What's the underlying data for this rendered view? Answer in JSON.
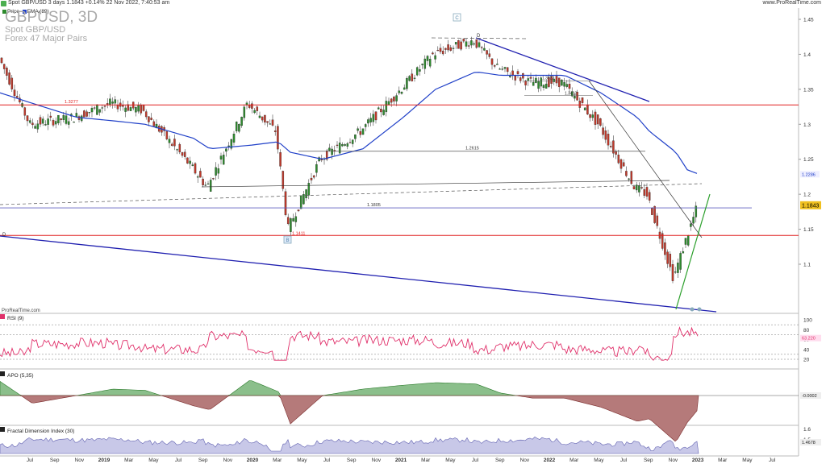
{
  "header": {
    "summary": "Spot GBP/USD 3 days 1.1843 +0.14% 22 Nov 2022, 7:40:53 am",
    "site": "www.ProRealTime.com",
    "legend_price": "Price",
    "legend_ema": "EMA (89)",
    "title": "GBPUSD, 3D",
    "subtitle1": "Spot GBP/USD",
    "subtitle2": "Forex 47 Major Pairs",
    "watermark": "ProRealTime.com",
    "marker_c": "C",
    "marker_b": "B",
    "marker_d": "D",
    "marker_d_left": "D"
  },
  "panels": {
    "rsi_label": "RSI (9)",
    "apo_label": "APO (5,35)",
    "fdi_label": "Fractal Dimension Index (30)"
  },
  "colors": {
    "up": "#2e8b2e",
    "down": "#c0392b",
    "ema": "#2040c8",
    "red_line": "#e02020",
    "blue_line": "#2020b0",
    "rsi": "#e0306a",
    "apo_pos": "#8bbf8b",
    "apo_neg": "#b57a7a",
    "fdi": "#8080c0",
    "last_price_box": "#f0c020"
  },
  "chart_data": [
    {
      "type": "candlestick",
      "title": "GBPUSD, 3D",
      "ylim": [
        1.025,
        1.47
      ],
      "y_ticks": [
        "1.45",
        "1.4",
        "1.35",
        "1.3",
        "1.25",
        "1.2",
        "1.15",
        "1.1"
      ],
      "last_price": "1.1843",
      "ema_value_label": "1.2286",
      "series": [
        {
          "name": "Price",
          "x": [
            "2018-06",
            "2018-08",
            "2018-10",
            "2019-01",
            "2019-04",
            "2019-07",
            "2019-09",
            "2019-12",
            "2020-02",
            "2020-03",
            "2020-06",
            "2020-09",
            "2020-12",
            "2021-02",
            "2021-05",
            "2021-07",
            "2021-10",
            "2022-01",
            "2022-04",
            "2022-06",
            "2022-08",
            "2022-09",
            "2022-10",
            "2022-11"
          ],
          "values": [
            1.4,
            1.3,
            1.31,
            1.33,
            1.32,
            1.24,
            1.21,
            1.33,
            1.29,
            1.15,
            1.25,
            1.29,
            1.35,
            1.4,
            1.42,
            1.38,
            1.36,
            1.36,
            1.3,
            1.21,
            1.2,
            1.08,
            1.13,
            1.184
          ]
        },
        {
          "name": "EMA (89)",
          "values": [
            1.345,
            1.33,
            1.31,
            1.305,
            1.3,
            1.28,
            1.265,
            1.27,
            1.275,
            1.26,
            1.25,
            1.265,
            1.31,
            1.35,
            1.375,
            1.37,
            1.37,
            1.37,
            1.345,
            1.31,
            1.29,
            1.26,
            1.235,
            1.228
          ]
        }
      ],
      "horizontal_levels": [
        {
          "label": "1.3277",
          "value": 1.3277
        },
        {
          "label": "1.1805",
          "value": 1.1805
        },
        {
          "label": "1.1411",
          "value": 1.1411
        },
        {
          "label": "1.2615",
          "value": 1.2615
        },
        {
          "label": "1.3622",
          "value": 1.3622
        },
        {
          "label": "1.3412",
          "value": 1.3412
        }
      ],
      "x_ticks": [
        "Jul",
        "Sep",
        "Nov",
        "2019",
        "Mar",
        "May",
        "Jul",
        "Sep",
        "Nov",
        "2020",
        "Mar",
        "May",
        "Jul",
        "Sep",
        "Nov",
        "2021",
        "Mar",
        "May",
        "Jul",
        "Sep",
        "Nov",
        "2022",
        "Mar",
        "May",
        "Jul",
        "Sep",
        "Nov",
        "2023",
        "Mar",
        "May",
        "Jul"
      ]
    },
    {
      "type": "line",
      "title": "RSI (9)",
      "ylim": [
        10,
        100
      ],
      "y_ticks": [
        "100",
        "80",
        "60",
        "40",
        "20"
      ],
      "last_value": "63.220",
      "levels": [
        90,
        70,
        30,
        20
      ]
    },
    {
      "type": "area",
      "title": "APO (5,35)",
      "last_value": "-0.0002"
    },
    {
      "type": "area",
      "title": "Fractal Dimension Index (30)",
      "y_ticks": [
        "1.6",
        "1.5"
      ],
      "last_value": "1.4678"
    }
  ]
}
